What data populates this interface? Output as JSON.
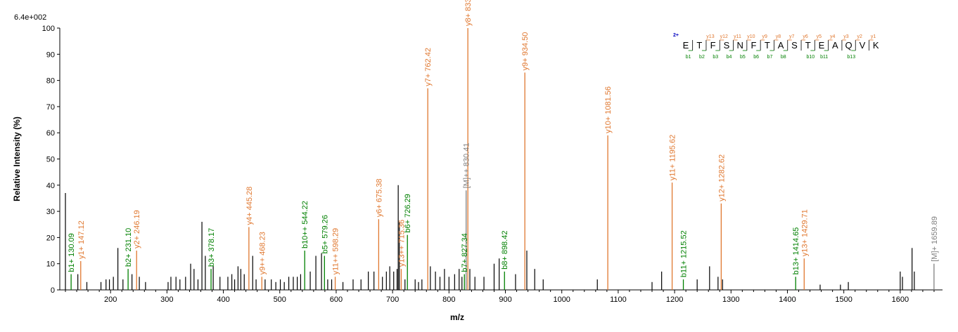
{
  "chart_data": {
    "type": "bar",
    "max_intensity": "6.4e+002",
    "xlabel": "m/z",
    "ylabel": "Relative   Intensity (%)",
    "xlim": [
      110,
      1675
    ],
    "ylim": [
      0,
      100
    ],
    "xticks": [
      200,
      300,
      400,
      500,
      600,
      700,
      800,
      900,
      1000,
      1100,
      1200,
      1300,
      1400,
      1500,
      1600
    ],
    "yticks": [
      0,
      10,
      20,
      30,
      40,
      50,
      60,
      70,
      80,
      90,
      100
    ],
    "colors": {
      "b": "#008000",
      "y": "#e07830",
      "other": "#808080",
      "unlabeled": "#000000"
    },
    "labeled_peaks": [
      {
        "mz": 130.09,
        "intensity": 6,
        "ion": "b",
        "label": "b1+ 130.09"
      },
      {
        "mz": 147.12,
        "intensity": 11,
        "ion": "y",
        "label": "y1+ 147.12"
      },
      {
        "mz": 231.1,
        "intensity": 8,
        "ion": "b",
        "label": "b2+ 231.10"
      },
      {
        "mz": 246.19,
        "intensity": 15,
        "ion": "y",
        "label": "y2+ 246.19"
      },
      {
        "mz": 378.17,
        "intensity": 8,
        "ion": "b",
        "label": "b3+ 378.17"
      },
      {
        "mz": 445.28,
        "intensity": 24,
        "ion": "y",
        "label": "y4+ 445.28"
      },
      {
        "mz": 468.23,
        "intensity": 5,
        "ion": "y",
        "label": "y9++ 468.23"
      },
      {
        "mz": 544.22,
        "intensity": 15,
        "ion": "b",
        "label": "b10++ 544.22"
      },
      {
        "mz": 579.26,
        "intensity": 13,
        "ion": "b",
        "label": "b5+ 579.26"
      },
      {
        "mz": 598.29,
        "intensity": 5,
        "ion": "y",
        "label": "y11++ 598.29"
      },
      {
        "mz": 675.38,
        "intensity": 27,
        "ion": "y",
        "label": "y6+ 675.38"
      },
      {
        "mz": 715.36,
        "intensity": 8,
        "ion": "y",
        "label": "y13++ 715.36"
      },
      {
        "mz": 726.29,
        "intensity": 21,
        "ion": "b",
        "label": "b6+ 726.29"
      },
      {
        "mz": 762.42,
        "intensity": 77,
        "ion": "y",
        "label": "y7+ 762.42"
      },
      {
        "mz": 827.34,
        "intensity": 6,
        "ion": "b",
        "label": "b7+ 827.34"
      },
      {
        "mz": 830.41,
        "intensity": 38,
        "ion": "other",
        "label": "[M]++ 830.41"
      },
      {
        "mz": 833.46,
        "intensity": 100,
        "ion": "y",
        "label": "y8+ 833.46"
      },
      {
        "mz": 898.42,
        "intensity": 7,
        "ion": "b",
        "label": "b8+ 898.42"
      },
      {
        "mz": 934.5,
        "intensity": 83,
        "ion": "y",
        "label": "y9+ 934.50"
      },
      {
        "mz": 1081.56,
        "intensity": 59,
        "ion": "y",
        "label": "y10+ 1081.56"
      },
      {
        "mz": 1195.62,
        "intensity": 41,
        "ion": "y",
        "label": "y11+ 1195.62"
      },
      {
        "mz": 1215.52,
        "intensity": 4,
        "ion": "b",
        "label": "b11+ 1215.52"
      },
      {
        "mz": 1282.62,
        "intensity": 33,
        "ion": "y",
        "label": "y12+ 1282.62"
      },
      {
        "mz": 1414.65,
        "intensity": 5,
        "ion": "b",
        "label": "b13+ 1414.65"
      },
      {
        "mz": 1429.71,
        "intensity": 12,
        "ion": "y",
        "label": "y13+ 1429.71"
      },
      {
        "mz": 1659.89,
        "intensity": 10,
        "ion": "other",
        "label": "[M]+ 1659.89"
      }
    ],
    "unlabeled_peaks": [
      [
        120,
        37
      ],
      [
        142,
        6
      ],
      [
        158,
        3
      ],
      [
        183,
        3
      ],
      [
        192,
        4
      ],
      [
        198,
        4
      ],
      [
        205,
        5
      ],
      [
        213,
        16
      ],
      [
        222,
        4
      ],
      [
        238,
        6
      ],
      [
        251,
        5
      ],
      [
        262,
        3
      ],
      [
        302,
        3
      ],
      [
        307,
        5
      ],
      [
        316,
        5
      ],
      [
        323,
        4
      ],
      [
        333,
        5
      ],
      [
        342,
        10
      ],
      [
        348,
        8
      ],
      [
        355,
        4
      ],
      [
        362,
        26
      ],
      [
        368,
        13
      ],
      [
        382,
        9
      ],
      [
        394,
        5
      ],
      [
        408,
        5
      ],
      [
        415,
        6
      ],
      [
        420,
        4
      ],
      [
        426,
        9
      ],
      [
        431,
        8
      ],
      [
        437,
        6
      ],
      [
        452,
        13
      ],
      [
        458,
        4
      ],
      [
        474,
        4
      ],
      [
        485,
        4
      ],
      [
        493,
        3
      ],
      [
        501,
        4
      ],
      [
        508,
        3
      ],
      [
        516,
        5
      ],
      [
        524,
        5
      ],
      [
        531,
        5
      ],
      [
        537,
        6
      ],
      [
        554,
        7
      ],
      [
        564,
        13
      ],
      [
        574,
        14
      ],
      [
        585,
        4
      ],
      [
        592,
        4
      ],
      [
        612,
        3
      ],
      [
        630,
        4
      ],
      [
        644,
        4
      ],
      [
        657,
        7
      ],
      [
        667,
        7
      ],
      [
        682,
        5
      ],
      [
        689,
        7
      ],
      [
        695,
        9
      ],
      [
        702,
        7
      ],
      [
        708,
        8
      ],
      [
        710,
        40
      ],
      [
        712,
        26
      ],
      [
        722,
        4
      ],
      [
        740,
        4
      ],
      [
        746,
        3
      ],
      [
        752,
        4
      ],
      [
        767,
        9
      ],
      [
        776,
        7
      ],
      [
        784,
        5
      ],
      [
        792,
        8
      ],
      [
        800,
        5
      ],
      [
        810,
        6
      ],
      [
        818,
        8
      ],
      [
        823,
        5
      ],
      [
        837,
        8
      ],
      [
        846,
        5
      ],
      [
        862,
        5
      ],
      [
        880,
        10
      ],
      [
        889,
        12
      ],
      [
        918,
        6
      ],
      [
        938,
        15
      ],
      [
        952,
        8
      ],
      [
        967,
        4
      ],
      [
        1063,
        4
      ],
      [
        1160,
        3
      ],
      [
        1177,
        7
      ],
      [
        1240,
        4
      ],
      [
        1262,
        9
      ],
      [
        1277,
        5
      ],
      [
        1285,
        4
      ],
      [
        1458,
        2
      ],
      [
        1494,
        2
      ],
      [
        1508,
        3
      ],
      [
        1600,
        7
      ],
      [
        1604,
        5
      ],
      [
        1621,
        16
      ],
      [
        1625,
        7
      ]
    ],
    "sequence": {
      "charge": "2+",
      "residues": [
        "E",
        "T",
        "F",
        "S",
        "N",
        "F",
        "T",
        "A",
        "S",
        "T",
        "E",
        "A",
        "Q",
        "V",
        "K"
      ],
      "y_ions": [
        "y13",
        "y12",
        "y11",
        "y10",
        "y9",
        "y8",
        "y7",
        "y6",
        "y5",
        "y4",
        "y3",
        "y2",
        "y1"
      ],
      "b_ions": [
        "b1",
        "b2",
        "b3",
        "b4",
        "b5",
        "b6",
        "b7",
        "b8",
        "b10",
        "b11",
        "b13"
      ]
    }
  }
}
